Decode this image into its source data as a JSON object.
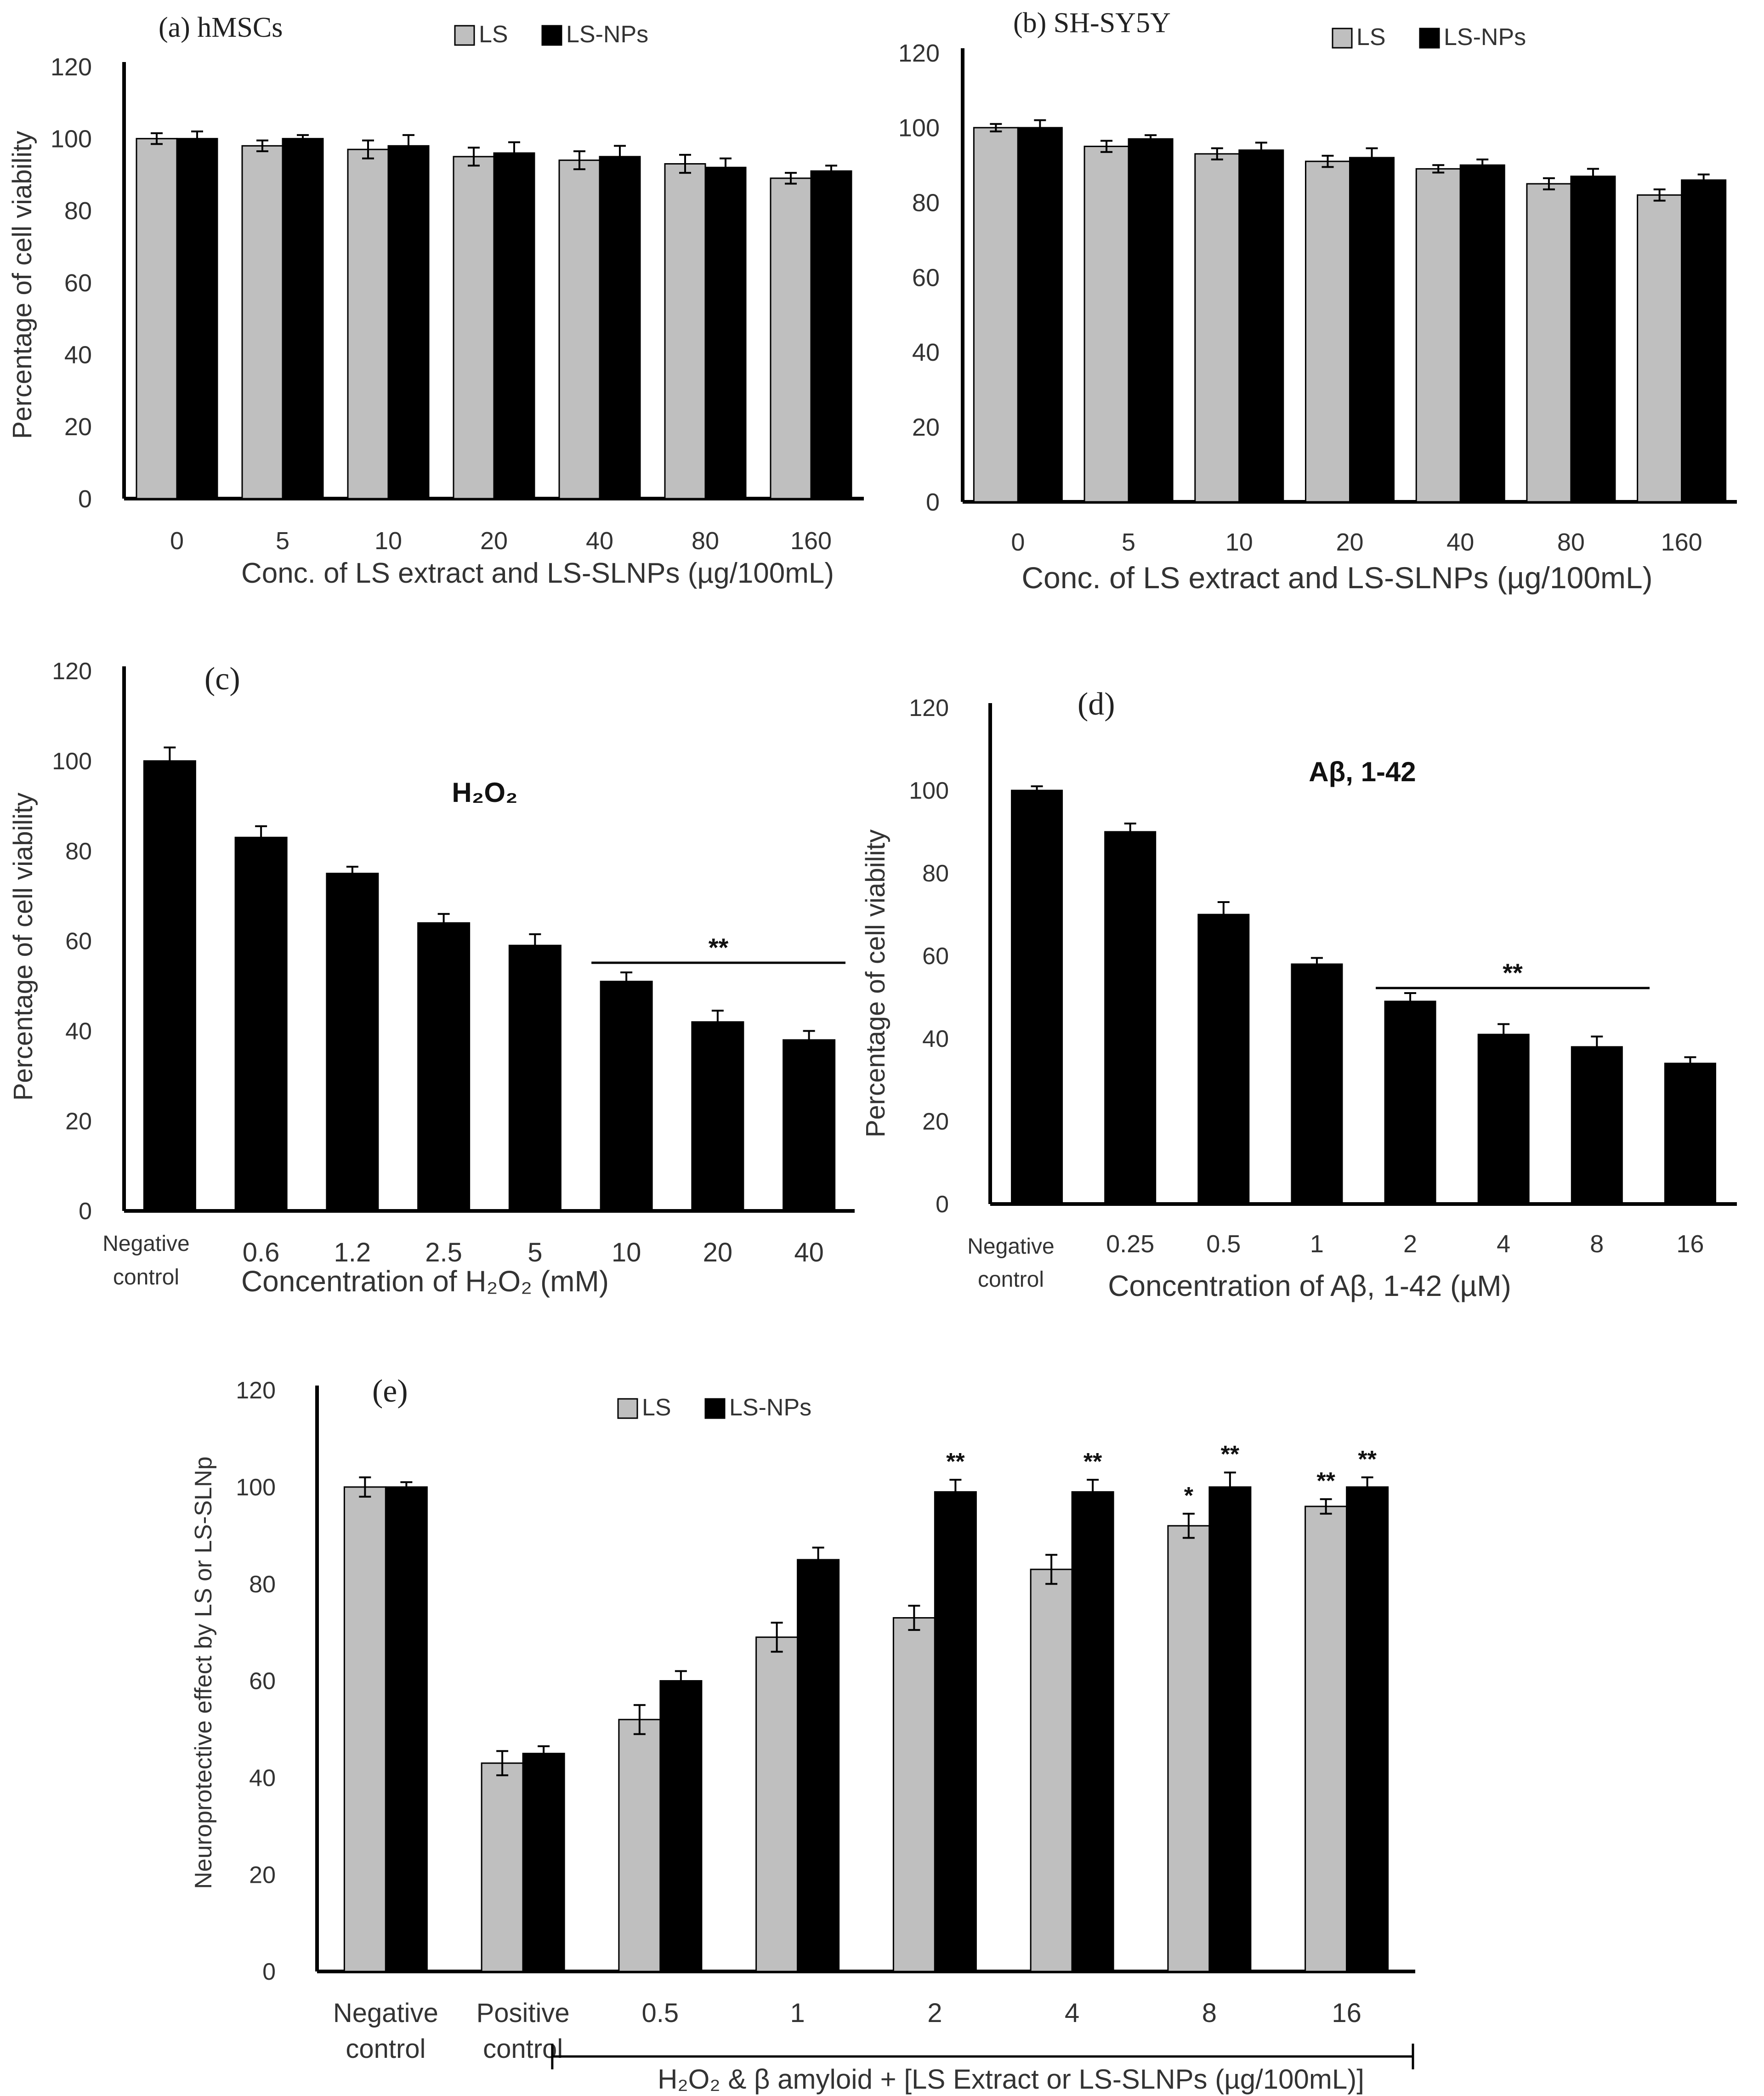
{
  "colors": {
    "ls": "#bfbfbf",
    "nps": "#000000",
    "axis": "#000000",
    "text": "#333333"
  },
  "chart_data": [
    {
      "id": "a",
      "type": "bar",
      "title": "(a) hMSCs",
      "ylabel": "Percentage of cell viability",
      "xlabel": "Conc. of LS extract and LS-SLNPs (µg/100mL)",
      "ylim": [
        0,
        120
      ],
      "yticks": [
        0,
        20,
        40,
        60,
        80,
        100,
        120
      ],
      "legend": [
        "LS",
        "LS-NPs"
      ],
      "categories": [
        "0",
        "5",
        "10",
        "20",
        "40",
        "80",
        "160"
      ],
      "series": [
        {
          "name": "LS",
          "values": [
            100,
            98,
            97,
            95,
            94,
            93,
            89
          ],
          "errors": [
            1.5,
            1.5,
            2.5,
            2.5,
            2.5,
            2.5,
            1.5
          ]
        },
        {
          "name": "LS-NPs",
          "values": [
            100,
            100,
            98,
            96,
            95,
            92,
            91
          ],
          "errors": [
            2,
            1,
            3,
            3,
            3,
            2.5,
            1.5
          ]
        }
      ]
    },
    {
      "id": "b",
      "type": "bar",
      "title": "(b) SH-SY5Y",
      "ylabel": "",
      "xlabel": "Conc. of LS extract and LS-SLNPs (µg/100mL)",
      "ylim": [
        0,
        120
      ],
      "yticks": [
        0,
        20,
        40,
        60,
        80,
        100,
        120
      ],
      "legend": [
        "LS",
        "LS-NPs"
      ],
      "categories": [
        "0",
        "5",
        "10",
        "20",
        "40",
        "80",
        "160"
      ],
      "series": [
        {
          "name": "LS",
          "values": [
            100,
            95,
            93,
            91,
            89,
            85,
            82
          ],
          "errors": [
            1,
            1.5,
            1.5,
            1.5,
            1,
            1.5,
            1.5
          ]
        },
        {
          "name": "LS-NPs",
          "values": [
            100,
            97,
            94,
            92,
            90,
            87,
            86
          ],
          "errors": [
            2,
            1,
            2,
            2.5,
            1.5,
            2,
            1.5
          ]
        }
      ]
    },
    {
      "id": "c",
      "type": "bar",
      "title": "(c)",
      "annotation": "H₂O₂",
      "significance": "**",
      "ylabel": "Percentage of cell viability",
      "xlabel": "Concentration of H₂O₂ (mM)",
      "ylim": [
        0,
        120
      ],
      "yticks": [
        0,
        20,
        40,
        60,
        80,
        100,
        120
      ],
      "categories": [
        "Negative control",
        "0.6",
        "1.2",
        "2.5",
        "5",
        "10",
        "20",
        "40"
      ],
      "series": [
        {
          "name": "H₂O₂",
          "values": [
            100,
            83,
            75,
            64,
            59,
            51,
            42,
            38
          ],
          "errors": [
            3,
            2.5,
            1.5,
            2,
            2.5,
            2,
            2.5,
            2
          ]
        }
      ]
    },
    {
      "id": "d",
      "type": "bar",
      "title": "(d)",
      "annotation": "Aβ, 1-42",
      "significance": "**",
      "ylabel": "Percentage of cell viability",
      "xlabel": "Concentration of Aβ, 1-42 (µM)",
      "ylim": [
        0,
        120
      ],
      "yticks": [
        0,
        20,
        40,
        60,
        80,
        100,
        120
      ],
      "categories": [
        "Negative control",
        "0.25",
        "0.5",
        "1",
        "2",
        "4",
        "8",
        "16"
      ],
      "series": [
        {
          "name": "Aβ, 1-42",
          "values": [
            100,
            90,
            70,
            58,
            49,
            41,
            38,
            34
          ],
          "errors": [
            1,
            2,
            3,
            1.5,
            2,
            2.5,
            2.5,
            1.5
          ]
        }
      ]
    },
    {
      "id": "e",
      "type": "bar",
      "title": "(e)",
      "ylabel": "Neuroprotective effect by LS or LS-SLNp",
      "xlabel": "H₂O₂ & β amyloid + [LS Extract or LS-SLNPs (µg/100mL)]",
      "ylim": [
        0,
        120
      ],
      "yticks": [
        0,
        20,
        40,
        60,
        80,
        100,
        120
      ],
      "legend": [
        "LS",
        "LS-NPs"
      ],
      "categories": [
        "Negative control",
        "Positive control",
        "0.5",
        "1",
        "2",
        "4",
        "8",
        "16"
      ],
      "series": [
        {
          "name": "LS",
          "values": [
            100,
            43,
            52,
            69,
            73,
            83,
            92,
            96
          ],
          "errors": [
            2,
            2.5,
            3,
            3,
            2.5,
            3,
            2.5,
            1.5
          ],
          "significance": [
            "",
            "",
            "",
            "",
            "",
            "",
            "*",
            "**"
          ]
        },
        {
          "name": "LS-NPs",
          "values": [
            100,
            45,
            60,
            85,
            99,
            99,
            100,
            100
          ],
          "errors": [
            1,
            1.5,
            2,
            2.5,
            2.5,
            2.5,
            3,
            2
          ],
          "significance": [
            "",
            "",
            "",
            "",
            "**",
            "**",
            "**",
            "**"
          ]
        }
      ]
    }
  ]
}
